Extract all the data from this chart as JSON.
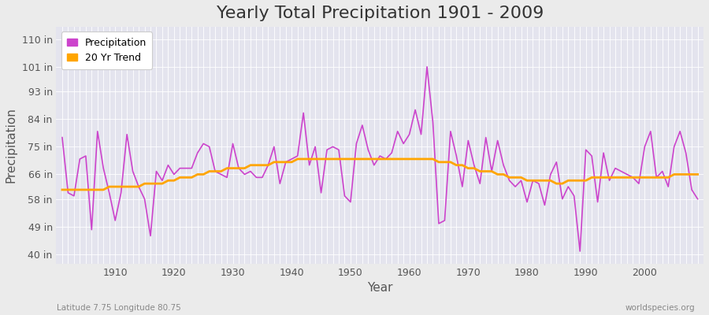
{
  "title": "Yearly Total Precipitation 1901 - 2009",
  "xlabel": "Year",
  "ylabel": "Precipitation",
  "subtitle": "Latitude 7.75 Longitude 80.75",
  "watermark": "worldspecies.org",
  "years": [
    1901,
    1902,
    1903,
    1904,
    1905,
    1906,
    1907,
    1908,
    1909,
    1910,
    1911,
    1912,
    1913,
    1914,
    1915,
    1916,
    1917,
    1918,
    1919,
    1920,
    1921,
    1922,
    1923,
    1924,
    1925,
    1926,
    1927,
    1928,
    1929,
    1930,
    1931,
    1932,
    1933,
    1934,
    1935,
    1936,
    1937,
    1938,
    1939,
    1940,
    1941,
    1942,
    1943,
    1944,
    1945,
    1946,
    1947,
    1948,
    1949,
    1950,
    1951,
    1952,
    1953,
    1954,
    1955,
    1956,
    1957,
    1958,
    1959,
    1960,
    1961,
    1962,
    1963,
    1964,
    1965,
    1966,
    1967,
    1968,
    1969,
    1970,
    1971,
    1972,
    1973,
    1974,
    1975,
    1976,
    1977,
    1978,
    1979,
    1980,
    1981,
    1982,
    1983,
    1984,
    1985,
    1986,
    1987,
    1988,
    1989,
    1990,
    1991,
    1992,
    1993,
    1994,
    1995,
    1996,
    1997,
    1998,
    1999,
    2000,
    2001,
    2002,
    2003,
    2004,
    2005,
    2006,
    2007,
    2008,
    2009
  ],
  "precip": [
    78,
    60,
    59,
    71,
    72,
    48,
    80,
    68,
    60,
    51,
    60,
    79,
    67,
    62,
    58,
    46,
    67,
    64,
    69,
    66,
    68,
    68,
    68,
    73,
    76,
    75,
    67,
    66,
    65,
    76,
    68,
    66,
    67,
    65,
    65,
    69,
    75,
    63,
    70,
    71,
    72,
    86,
    69,
    75,
    60,
    74,
    75,
    74,
    59,
    57,
    76,
    82,
    74,
    69,
    72,
    71,
    73,
    80,
    76,
    79,
    87,
    79,
    101,
    83,
    50,
    51,
    80,
    72,
    62,
    77,
    69,
    63,
    78,
    67,
    77,
    69,
    64,
    62,
    64,
    57,
    64,
    63,
    56,
    66,
    70,
    58,
    62,
    59,
    41,
    74,
    72,
    57,
    73,
    64,
    68,
    67,
    66,
    65,
    63,
    75,
    80,
    65,
    67,
    62,
    75,
    80,
    73,
    61,
    58
  ],
  "trend": [
    61,
    61,
    61,
    61,
    61,
    61,
    61,
    61,
    62,
    62,
    62,
    62,
    62,
    62,
    63,
    63,
    63,
    63,
    64,
    64,
    65,
    65,
    65,
    66,
    66,
    67,
    67,
    67,
    68,
    68,
    68,
    68,
    69,
    69,
    69,
    69,
    70,
    70,
    70,
    70,
    71,
    71,
    71,
    71,
    71,
    71,
    71,
    71,
    71,
    71,
    71,
    71,
    71,
    71,
    71,
    71,
    71,
    71,
    71,
    71,
    71,
    71,
    71,
    71,
    70,
    70,
    70,
    69,
    69,
    68,
    68,
    67,
    67,
    67,
    66,
    66,
    65,
    65,
    65,
    64,
    64,
    64,
    64,
    64,
    63,
    63,
    64,
    64,
    64,
    64,
    65,
    65,
    65,
    65,
    65,
    65,
    65,
    65,
    65,
    65,
    65,
    65,
    65,
    65,
    66,
    66,
    66,
    66,
    66
  ],
  "precip_color": "#CC44CC",
  "trend_color": "#FFA500",
  "bg_color": "#EBEBEB",
  "plot_bg_color": "#E4E4EE",
  "grid_color": "#FFFFFF",
  "yticks": [
    40,
    49,
    58,
    66,
    75,
    84,
    93,
    101,
    110
  ],
  "ytick_labels": [
    "40 in",
    "49 in",
    "58 in",
    "66 in",
    "75 in",
    "84 in",
    "93 in",
    "101 in",
    "110 in"
  ],
  "ylim": [
    37,
    114
  ],
  "xlim": [
    1900,
    2010
  ],
  "xticks": [
    1910,
    1920,
    1930,
    1940,
    1950,
    1960,
    1970,
    1980,
    1990,
    2000
  ],
  "title_fontsize": 16,
  "axis_fontsize": 11,
  "tick_fontsize": 9,
  "legend_fontsize": 9
}
